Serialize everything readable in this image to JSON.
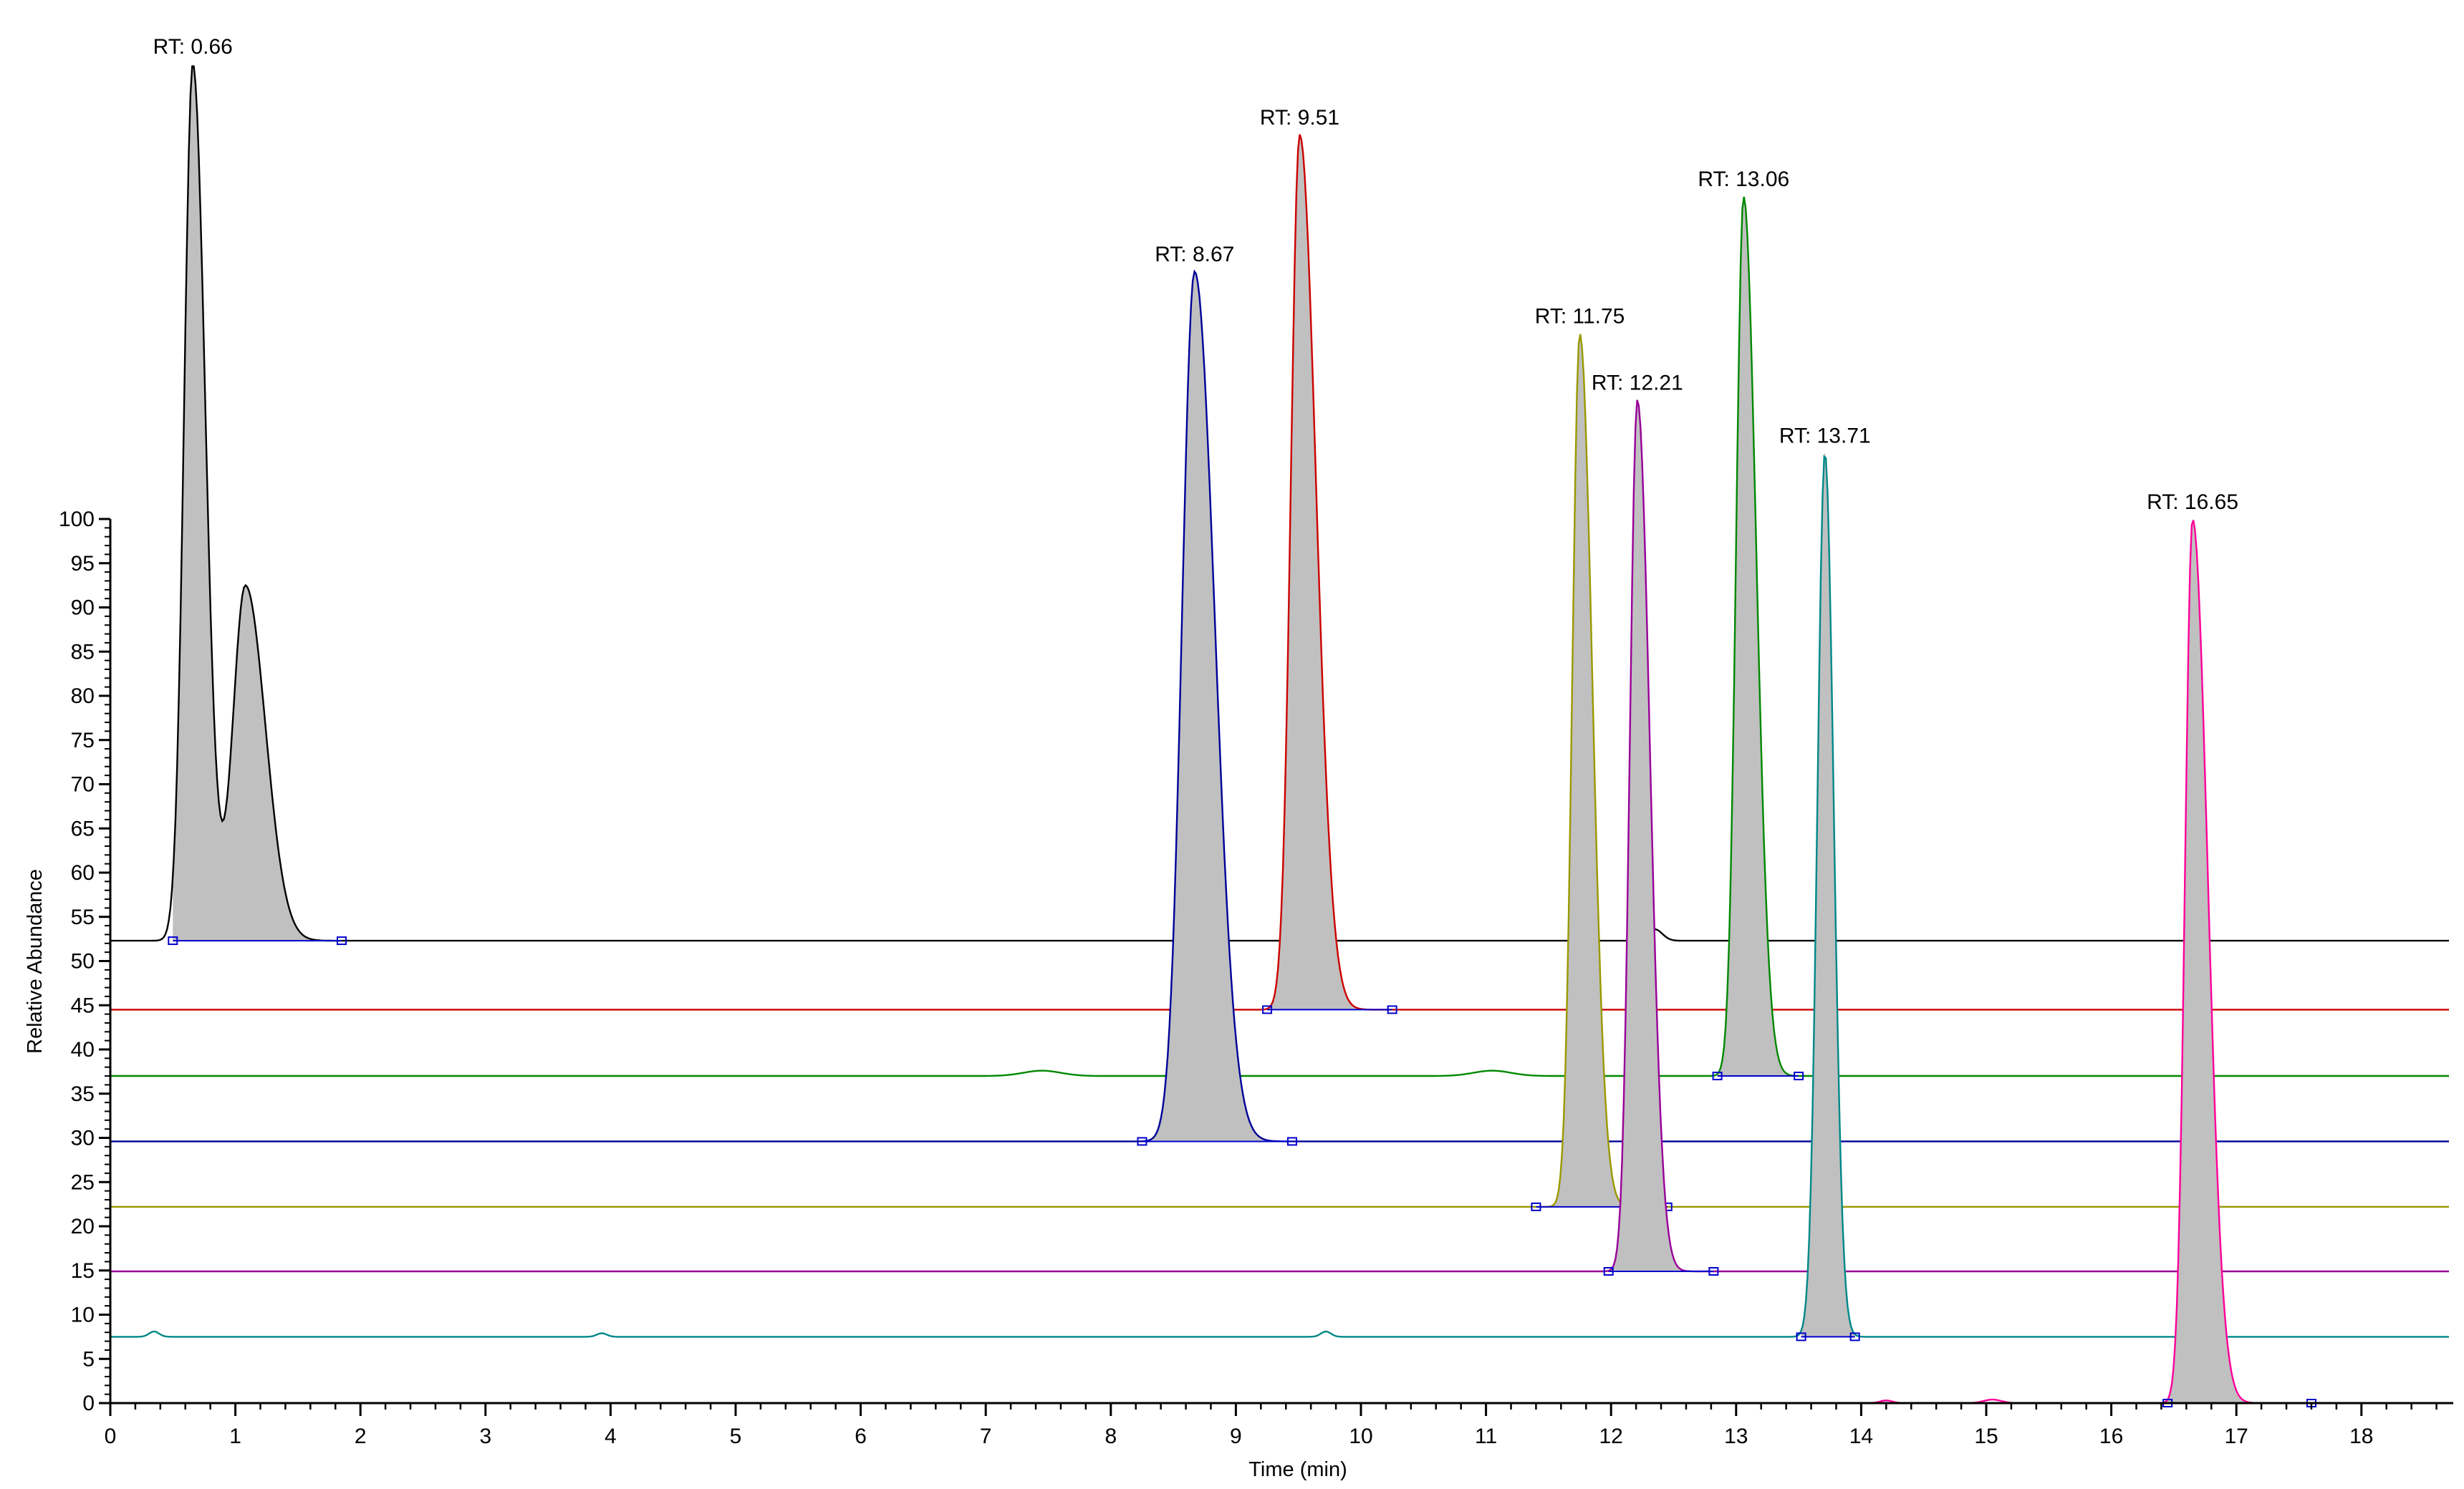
{
  "chart_data": {
    "type": "line",
    "title": "",
    "xlabel": "Time (min)",
    "ylabel": "Relative Abundance",
    "xlim": [
      0,
      18.7
    ],
    "ylim": [
      0,
      100
    ],
    "x_ticks": [
      0,
      1,
      2,
      3,
      4,
      5,
      6,
      7,
      8,
      9,
      10,
      11,
      12,
      13,
      14,
      15,
      16,
      17,
      18
    ],
    "y_ticks": [
      0,
      5,
      10,
      15,
      20,
      25,
      30,
      35,
      40,
      45,
      50,
      55,
      60,
      65,
      70,
      75,
      80,
      85,
      90,
      95,
      100
    ],
    "grid": false,
    "legend": "none",
    "fill_color": "#c0c0c0",
    "series": [
      {
        "color": "#000000",
        "baseline": 52.3,
        "peaks": [
          {
            "rt": 0.66,
            "label": "RT: 0.66",
            "apex": 151.5,
            "rise_sigma": 0.07,
            "tail_sigma": 0.1,
            "integration": [
              0.5,
              1.85
            ]
          },
          {
            "rt": 1.08,
            "apex": 92.5,
            "rise_sigma": 0.1,
            "tail_sigma": 0.16,
            "unlabeled": true
          },
          {
            "rt": 12.35,
            "apex": 53.6,
            "rise_sigma": 0.04,
            "tail_sigma": 0.06,
            "unlabeled": true
          }
        ]
      },
      {
        "color": "#cc0000",
        "baseline": 44.5,
        "peaks": [
          {
            "rt": 9.51,
            "label": "RT: 9.51",
            "apex": 143.5,
            "rise_sigma": 0.07,
            "tail_sigma": 0.13,
            "integration": [
              9.25,
              10.25
            ]
          }
        ]
      },
      {
        "color": "#008800",
        "baseline": 37.0,
        "peaks": [
          {
            "rt": 13.06,
            "label": "RT: 13.06",
            "apex": 136.5,
            "rise_sigma": 0.06,
            "tail_sigma": 0.1,
            "integration": [
              12.85,
              13.5
            ]
          },
          {
            "rt": 7.45,
            "apex": 37.6,
            "rise_sigma": 0.15,
            "tail_sigma": 0.15,
            "unlabeled": true
          },
          {
            "rt": 11.05,
            "apex": 37.6,
            "rise_sigma": 0.15,
            "tail_sigma": 0.15,
            "unlabeled": true
          }
        ]
      },
      {
        "color": "#000099",
        "baseline": 29.6,
        "peaks": [
          {
            "rt": 8.67,
            "label": "RT: 8.67",
            "apex": 128.0,
            "rise_sigma": 0.1,
            "tail_sigma": 0.16,
            "integration": [
              8.25,
              9.45
            ]
          }
        ]
      },
      {
        "color": "#999900",
        "baseline": 22.2,
        "peaks": [
          {
            "rt": 11.75,
            "label": "RT: 11.75",
            "apex": 121.0,
            "rise_sigma": 0.06,
            "tail_sigma": 0.1,
            "integration": [
              11.4,
              12.45
            ]
          }
        ]
      },
      {
        "color": "#990099",
        "baseline": 14.9,
        "peaks": [
          {
            "rt": 12.21,
            "label": "RT: 12.21",
            "apex": 113.5,
            "rise_sigma": 0.06,
            "tail_sigma": 0.1,
            "integration": [
              11.98,
              12.82
            ]
          }
        ]
      },
      {
        "color": "#008888",
        "baseline": 7.5,
        "peaks": [
          {
            "rt": 13.71,
            "label": "RT: 13.71",
            "apex": 107.5,
            "rise_sigma": 0.06,
            "tail_sigma": 0.07,
            "integration": [
              13.52,
              13.95
            ]
          },
          {
            "rt": 0.35,
            "apex": 8.1,
            "rise_sigma": 0.04,
            "tail_sigma": 0.04,
            "unlabeled": true
          },
          {
            "rt": 3.93,
            "apex": 7.9,
            "rise_sigma": 0.04,
            "tail_sigma": 0.04,
            "unlabeled": true
          },
          {
            "rt": 9.72,
            "apex": 8.1,
            "rise_sigma": 0.04,
            "tail_sigma": 0.04,
            "unlabeled": true
          }
        ]
      },
      {
        "color": "#ff0099",
        "baseline": 0,
        "peaks": [
          {
            "rt": 16.65,
            "label": "RT: 16.65",
            "apex": 100,
            "rise_sigma": 0.06,
            "tail_sigma": 0.12,
            "integration": [
              16.45,
              17.6
            ]
          },
          {
            "rt": 14.2,
            "apex": 0.3,
            "rise_sigma": 0.05,
            "tail_sigma": 0.05,
            "unlabeled": true
          },
          {
            "rt": 15.05,
            "apex": 0.4,
            "rise_sigma": 0.07,
            "tail_sigma": 0.07,
            "unlabeled": true
          }
        ]
      }
    ]
  }
}
